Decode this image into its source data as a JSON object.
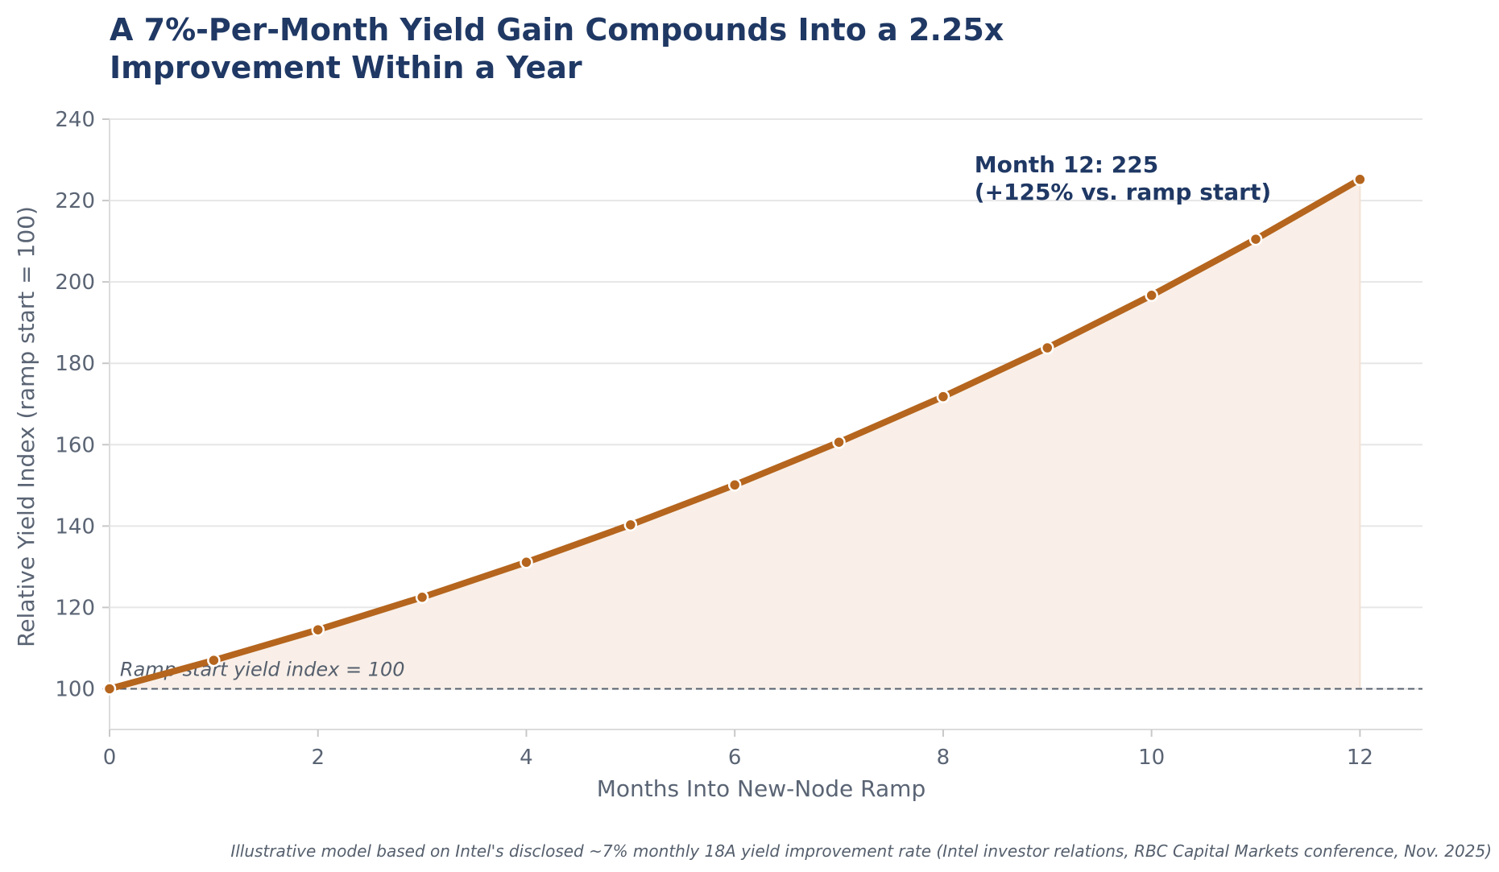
{
  "chart_data": {
    "type": "area",
    "title_lines": [
      "A 7%-Per-Month Yield Gain Compounds Into a 2.25x",
      "Improvement Within a Year"
    ],
    "xlabel": "Months Into New-Node Ramp",
    "ylabel": "Relative Yield Index (ramp start = 100)",
    "x": [
      0,
      1,
      2,
      3,
      4,
      5,
      6,
      7,
      8,
      9,
      10,
      11,
      12
    ],
    "values": [
      100.0,
      107.0,
      114.5,
      122.5,
      131.1,
      140.3,
      150.1,
      160.6,
      171.8,
      183.8,
      196.7,
      210.5,
      225.2
    ],
    "xlim": [
      0,
      12.6
    ],
    "ylim": [
      90,
      240
    ],
    "xticks": [
      0,
      2,
      4,
      6,
      8,
      10,
      12
    ],
    "yticks": [
      100,
      120,
      140,
      160,
      180,
      200,
      220,
      240
    ],
    "grid": "horizontal",
    "reference_line": {
      "y": 100,
      "label": "Ramp start yield index = 100"
    },
    "annotation": {
      "x": 12,
      "y": 225,
      "lines": [
        "Month 12: 225",
        "(+125% vs. ramp start)"
      ]
    },
    "colors": {
      "line": "#b5651d",
      "fill": "#f9efe8",
      "title": "#1f3864",
      "reference": "#555f6d",
      "grid": "#e6e6e6"
    }
  },
  "footnote": "Illustrative model based on Intel's disclosed ~7% monthly 18A yield improvement rate (Intel investor relations, RBC Capital Markets conference, Nov. 2025)"
}
